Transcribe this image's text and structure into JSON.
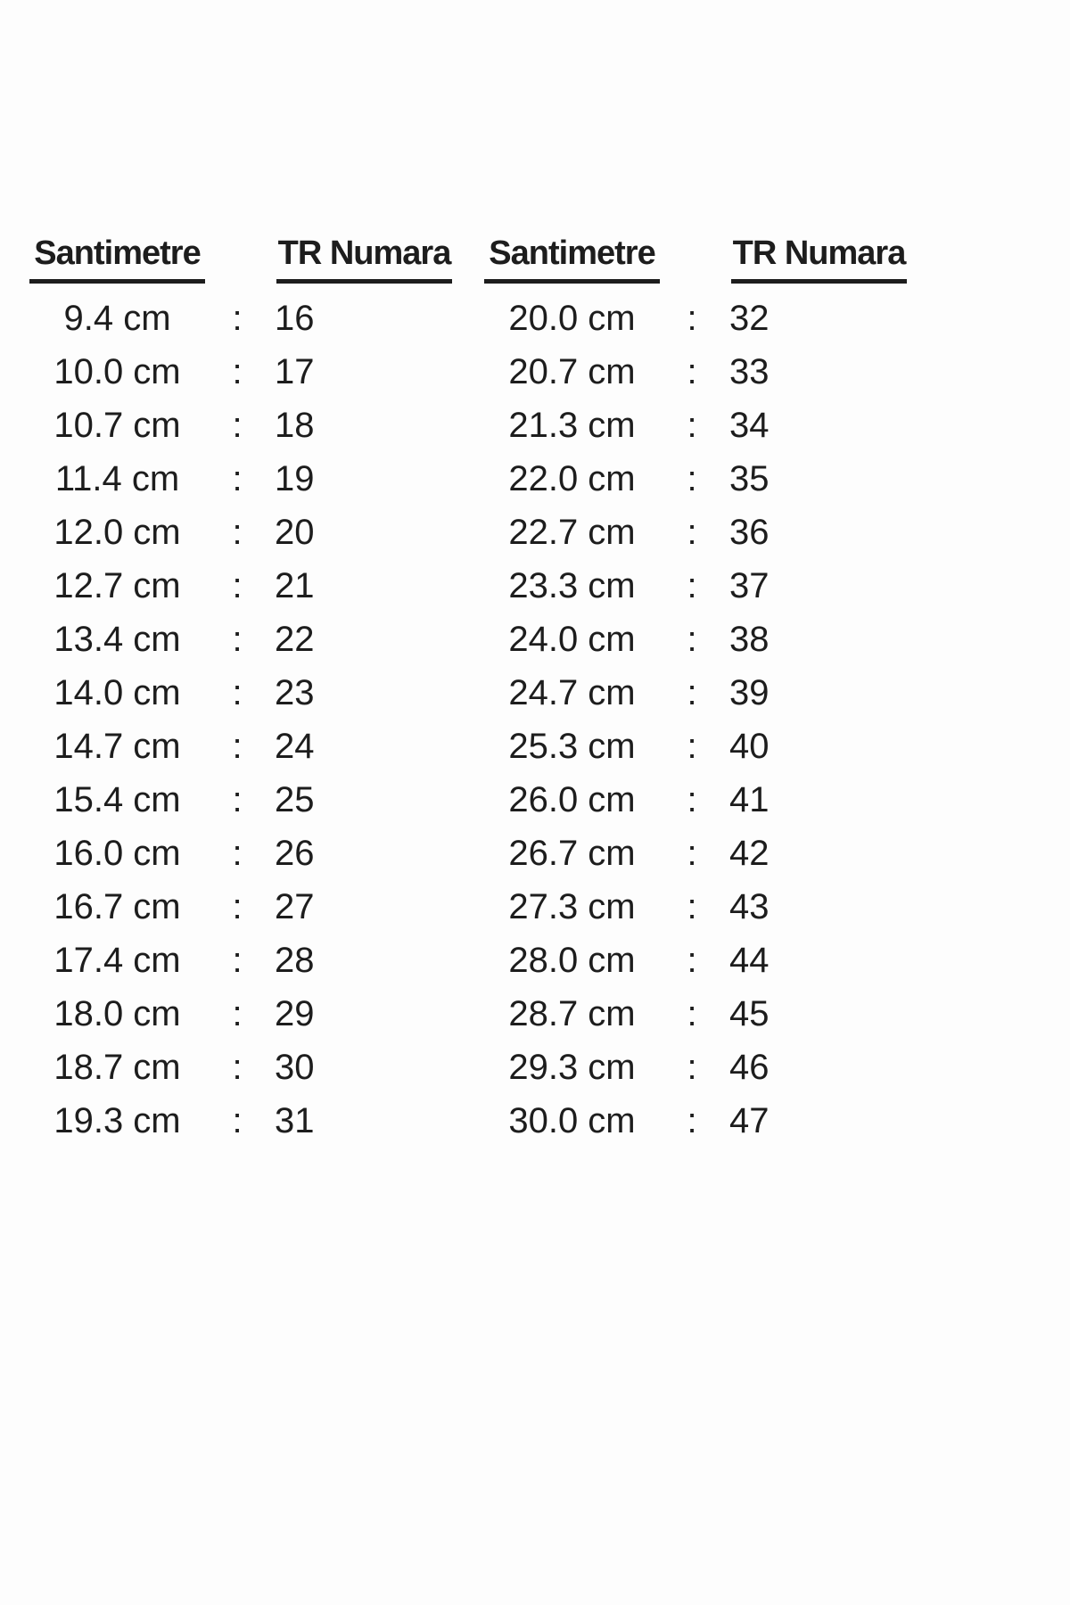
{
  "page": {
    "background_color": "#fdfdfd",
    "text_color": "#1d1d1d"
  },
  "tables": [
    {
      "cm_header": "Santimetre",
      "size_header": "TR Numara",
      "separator": ":",
      "rows": [
        {
          "cm": "9.4 cm",
          "sep": ":",
          "size": "16"
        },
        {
          "cm": "10.0 cm",
          "sep": ":",
          "size": "17"
        },
        {
          "cm": "10.7 cm",
          "sep": ":",
          "size": "18"
        },
        {
          "cm": "11.4 cm",
          "sep": ":",
          "size": "19"
        },
        {
          "cm": "12.0 cm",
          "sep": ":",
          "size": "20"
        },
        {
          "cm": "12.7 cm",
          "sep": ":",
          "size": "21"
        },
        {
          "cm": "13.4 cm",
          "sep": ":",
          "size": "22"
        },
        {
          "cm": "14.0 cm",
          "sep": ":",
          "size": "23"
        },
        {
          "cm": "14.7 cm",
          "sep": ":",
          "size": "24"
        },
        {
          "cm": "15.4 cm",
          "sep": ":",
          "size": "25"
        },
        {
          "cm": "16.0 cm",
          "sep": ":",
          "size": "26"
        },
        {
          "cm": "16.7 cm",
          "sep": ":",
          "size": "27"
        },
        {
          "cm": "17.4 cm",
          "sep": ":",
          "size": "28"
        },
        {
          "cm": "18.0 cm",
          "sep": ":",
          "size": "29"
        },
        {
          "cm": "18.7 cm",
          "sep": ":",
          "size": "30"
        },
        {
          "cm": "19.3 cm",
          "sep": ":",
          "size": "31"
        }
      ]
    },
    {
      "cm_header": "Santimetre",
      "size_header": "TR Numara",
      "separator": ":",
      "rows": [
        {
          "cm": "20.0 cm",
          "sep": ":",
          "size": "32"
        },
        {
          "cm": "20.7 cm",
          "sep": ":",
          "size": "33"
        },
        {
          "cm": "21.3 cm",
          "sep": ":",
          "size": "34"
        },
        {
          "cm": "22.0 cm",
          "sep": ":",
          "size": "35"
        },
        {
          "cm": "22.7 cm",
          "sep": ":",
          "size": "36"
        },
        {
          "cm": "23.3 cm",
          "sep": ":",
          "size": "37"
        },
        {
          "cm": "24.0 cm",
          "sep": ":",
          "size": "38"
        },
        {
          "cm": "24.7 cm",
          "sep": ":",
          "size": "39"
        },
        {
          "cm": "25.3 cm",
          "sep": ":",
          "size": "40"
        },
        {
          "cm": "26.0 cm",
          "sep": ":",
          "size": "41"
        },
        {
          "cm": "26.7 cm",
          "sep": ":",
          "size": "42"
        },
        {
          "cm": "27.3 cm",
          "sep": ":",
          "size": "43"
        },
        {
          "cm": "28.0 cm",
          "sep": ":",
          "size": "44"
        },
        {
          "cm": "28.7 cm",
          "sep": ":",
          "size": "45"
        },
        {
          "cm": "29.3 cm",
          "sep": ":",
          "size": "46"
        },
        {
          "cm": "30.0 cm",
          "sep": ":",
          "size": "47"
        }
      ]
    }
  ]
}
